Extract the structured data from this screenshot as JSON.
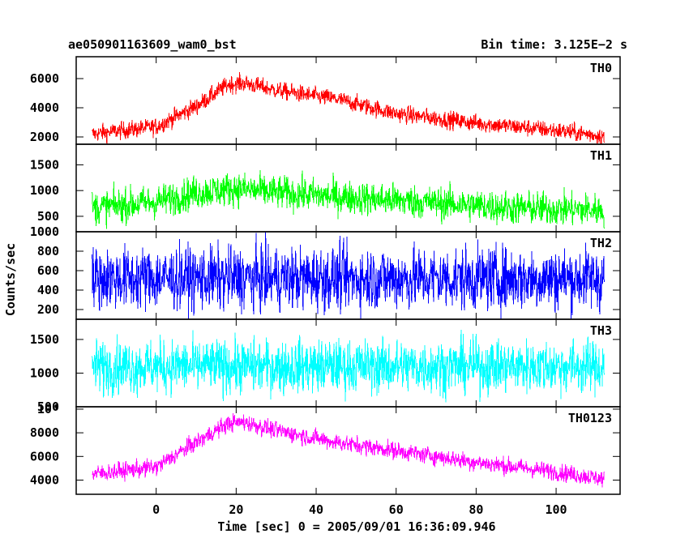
{
  "header": {
    "left_title": "ae050901163609_wam0_bst",
    "right_title": "Bin time: 3.125E−2 s"
  },
  "chart_data": {
    "type": "line",
    "title": "ae050901163609_wam0_bst",
    "subtitle": "Bin time: 3.125E−2 s",
    "xlabel": "Time [sec] 0 = 2005/09/01 16:36:09.946",
    "ylabel": "Counts/sec",
    "xlim": [
      -20,
      116
    ],
    "x_ticks": [
      0,
      20,
      40,
      60,
      80,
      100
    ],
    "x_tick_labels": [
      "0",
      "20",
      "40",
      "60",
      "80",
      "100"
    ],
    "data_range_x": [
      -16,
      112
    ],
    "panels": [
      {
        "name": "TH0",
        "color": "#ff0000",
        "ylim": [
          1500,
          7500
        ],
        "y_ticks": [
          2000,
          4000,
          6000
        ],
        "y_tick_labels": [
          "2000",
          "4000",
          "6000"
        ],
        "x": [
          -16,
          0,
          10,
          18,
          22,
          30,
          45,
          60,
          80,
          100,
          112
        ],
        "y_mean": [
          2200,
          2700,
          4100,
          5600,
          5700,
          5200,
          4600,
          3600,
          2950,
          2450,
          2050
        ],
        "y_noise": 420
      },
      {
        "name": "TH1",
        "color": "#00ff00",
        "ylim": [
          200,
          1900
        ],
        "y_ticks": [
          500,
          1000,
          1500
        ],
        "y_tick_labels": [
          "500",
          "1000",
          "1500"
        ],
        "x": [
          -16,
          0,
          10,
          20,
          30,
          50,
          70,
          90,
          112
        ],
        "y_mean": [
          660,
          780,
          960,
          1040,
          960,
          860,
          760,
          660,
          620
        ],
        "y_noise": 230
      },
      {
        "name": "TH2",
        "color": "#0000ff",
        "ylim": [
          100,
          1000
        ],
        "y_ticks": [
          200,
          400,
          600,
          800,
          1000
        ],
        "y_tick_labels": [
          "200",
          "400",
          "600",
          "800",
          "1000"
        ],
        "x": [
          -16,
          112
        ],
        "y_mean": [
          520,
          520
        ],
        "y_noise": 230
      },
      {
        "name": "TH3",
        "color": "#00ffff",
        "ylim": [
          500,
          1800
        ],
        "y_ticks": [
          500,
          1000,
          1500
        ],
        "y_tick_labels": [
          "500",
          "1000",
          "1500"
        ],
        "x": [
          -16,
          112
        ],
        "y_mean": [
          1100,
          1100
        ],
        "y_noise": 280
      },
      {
        "name": "TH0123",
        "color": "#ff00ff",
        "ylim": [
          2800,
          10200
        ],
        "y_ticks": [
          4000,
          6000,
          8000,
          10000
        ],
        "y_tick_labels": [
          "4000",
          "6000",
          "8000",
          "10⁴"
        ],
        "x": [
          -16,
          0,
          10,
          18,
          22,
          30,
          45,
          60,
          80,
          100,
          112
        ],
        "y_mean": [
          4500,
          5100,
          7200,
          8800,
          8900,
          8200,
          7200,
          6500,
          5500,
          4700,
          4100
        ],
        "y_noise": 520
      }
    ],
    "grid": false,
    "legend": "none"
  }
}
